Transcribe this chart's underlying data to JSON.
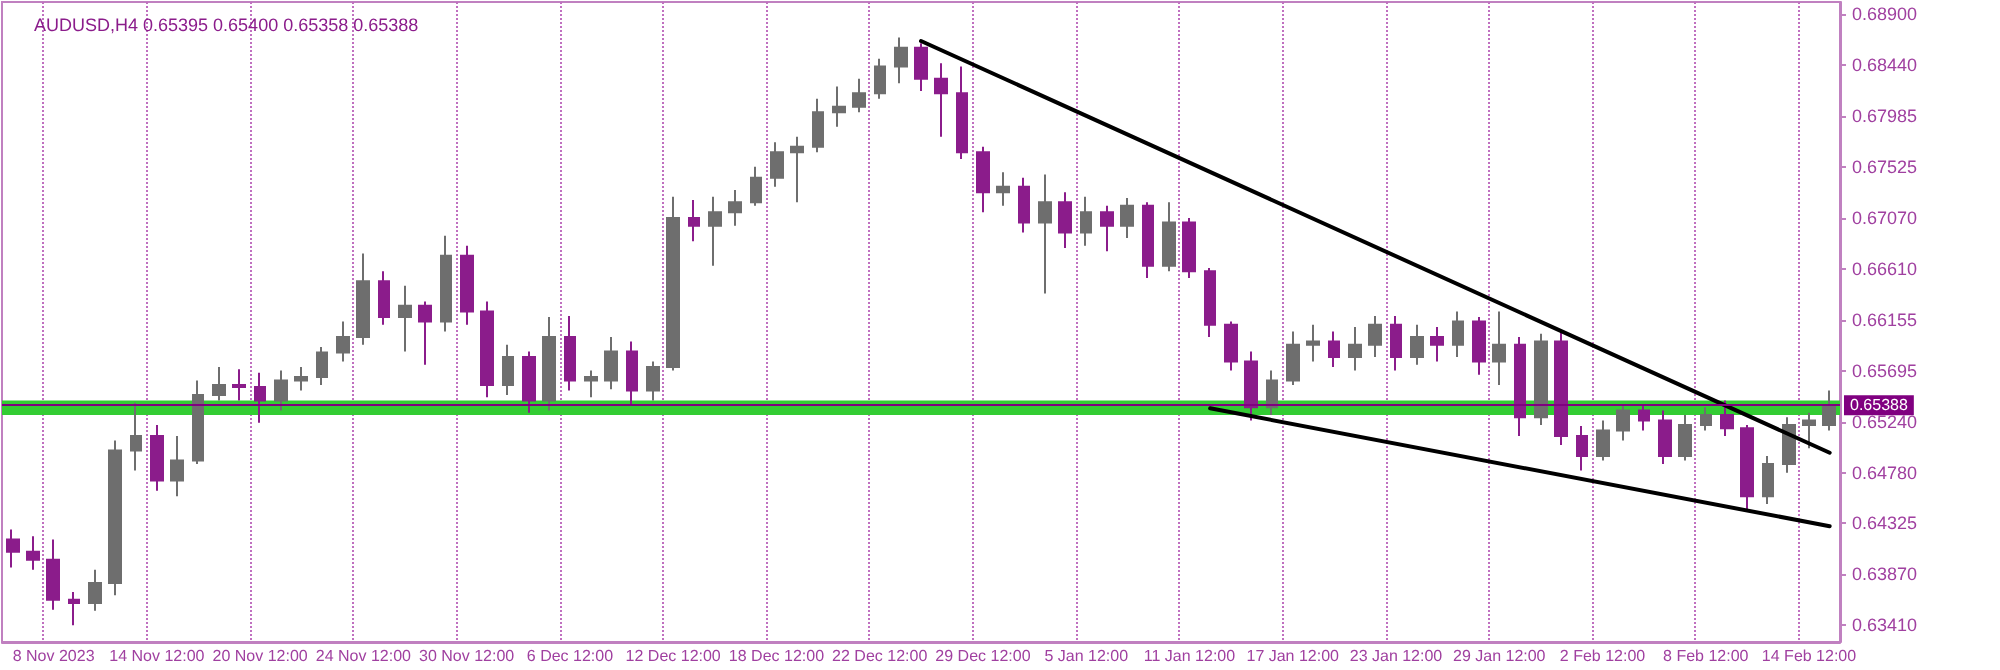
{
  "chart_data": {
    "type": "candlestick",
    "title": "AUDUSD,H4 0.65395 0.65400 0.65358 0.65388",
    "categories": [
      null,
      null,
      "8 Nov 2023",
      null,
      null,
      null,
      null,
      "14 Nov 12:00",
      null,
      null,
      null,
      null,
      "20 Nov 12:00",
      null,
      null,
      null,
      null,
      "24 Nov 12:00",
      null,
      null,
      null,
      null,
      "30 Nov 12:00",
      null,
      null,
      null,
      null,
      "6 Dec 12:00",
      null,
      null,
      null,
      null,
      "12 Dec 12:00",
      null,
      null,
      null,
      null,
      "18 Dec 12:00",
      null,
      null,
      null,
      null,
      "22 Dec 12:00",
      null,
      null,
      null,
      null,
      "29 Dec 12:00",
      null,
      null,
      null,
      null,
      "5 Jan 12:00",
      null,
      null,
      null,
      null,
      "11 Jan 12:00",
      null,
      null,
      null,
      null,
      "17 Jan 12:00",
      null,
      null,
      null,
      null,
      "23 Jan 12:00",
      null,
      null,
      null,
      null,
      "29 Jan 12:00",
      null,
      null,
      null,
      null,
      "2 Feb 12:00",
      null,
      null,
      null,
      null,
      "8 Feb 12:00",
      null,
      null,
      null,
      null,
      "14 Feb 12:00",
      null
    ],
    "series": [
      {
        "ohlc": [
          [
            0.6418,
            0.6427,
            0.6393,
            0.6407
          ],
          [
            0.6407,
            0.6421,
            0.6391,
            0.64
          ],
          [
            0.64,
            0.6418,
            0.6355,
            0.6364
          ],
          [
            0.6364,
            0.6371,
            0.6341,
            0.6361
          ],
          [
            0.6361,
            0.6391,
            0.6354,
            0.6379
          ],
          [
            0.6379,
            0.6507,
            0.6368,
            0.6498
          ],
          [
            0.6498,
            0.6541,
            0.648,
            0.6511
          ],
          [
            0.6511,
            0.6521,
            0.6462,
            0.6471
          ],
          [
            0.6471,
            0.6511,
            0.6457,
            0.6489
          ],
          [
            0.6489,
            0.6561,
            0.6486,
            0.6548
          ],
          [
            0.6548,
            0.6573,
            0.6543,
            0.6557
          ],
          [
            0.6557,
            0.6571,
            0.6543,
            0.6555
          ],
          [
            0.6555,
            0.6568,
            0.6523,
            0.6543
          ],
          [
            0.6543,
            0.657,
            0.6534,
            0.6561
          ],
          [
            0.6561,
            0.6573,
            0.6552,
            0.6564
          ],
          [
            0.6564,
            0.6591,
            0.6557,
            0.6586
          ],
          [
            0.6586,
            0.6614,
            0.6578,
            0.66
          ],
          [
            0.66,
            0.6675,
            0.6593,
            0.665
          ],
          [
            0.665,
            0.6659,
            0.6611,
            0.6618
          ],
          [
            0.6618,
            0.6646,
            0.6587,
            0.6628
          ],
          [
            0.6628,
            0.6632,
            0.6575,
            0.6614
          ],
          [
            0.6614,
            0.6691,
            0.6605,
            0.6673
          ],
          [
            0.6673,
            0.6682,
            0.6611,
            0.6623
          ],
          [
            0.6623,
            0.6632,
            0.6546,
            0.6557
          ],
          [
            0.6557,
            0.6593,
            0.6548,
            0.6582
          ],
          [
            0.6582,
            0.6587,
            0.6532,
            0.6543
          ],
          [
            0.6543,
            0.6618,
            0.6534,
            0.66
          ],
          [
            0.66,
            0.6619,
            0.6552,
            0.6561
          ],
          [
            0.6561,
            0.657,
            0.6546,
            0.6564
          ],
          [
            0.6561,
            0.66,
            0.6553,
            0.6587
          ],
          [
            0.6587,
            0.6596,
            0.6539,
            0.6552
          ],
          [
            0.6552,
            0.6578,
            0.6543,
            0.6573
          ],
          [
            0.6573,
            0.6726,
            0.657,
            0.6707
          ],
          [
            0.6707,
            0.6723,
            0.6686,
            0.67
          ],
          [
            0.67,
            0.6726,
            0.6664,
            0.6712
          ],
          [
            0.6712,
            0.6732,
            0.67,
            0.6721
          ],
          [
            0.6721,
            0.6753,
            0.6718,
            0.6743
          ],
          [
            0.6743,
            0.6775,
            0.6735,
            0.6766
          ],
          [
            0.6766,
            0.678,
            0.6721,
            0.6771
          ],
          [
            0.6771,
            0.6814,
            0.6766,
            0.6802
          ],
          [
            0.6802,
            0.6825,
            0.6789,
            0.6807
          ],
          [
            0.6807,
            0.6832,
            0.6802,
            0.6819
          ],
          [
            0.6819,
            0.685,
            0.6814,
            0.6843
          ],
          [
            0.6843,
            0.6869,
            0.6828,
            0.686
          ],
          [
            0.686,
            0.6864,
            0.6821,
            0.6832
          ],
          [
            0.6832,
            0.6846,
            0.678,
            0.6819
          ],
          [
            0.6819,
            0.6843,
            0.676,
            0.6766
          ],
          [
            0.6766,
            0.6771,
            0.6712,
            0.673
          ],
          [
            0.673,
            0.6748,
            0.6718,
            0.6735
          ],
          [
            0.6735,
            0.6743,
            0.6694,
            0.6703
          ],
          [
            0.6703,
            0.6746,
            0.6639,
            0.6721
          ],
          [
            0.6721,
            0.673,
            0.668,
            0.6694
          ],
          [
            0.6694,
            0.6726,
            0.6682,
            0.6712
          ],
          [
            0.6712,
            0.6718,
            0.6677,
            0.67
          ],
          [
            0.67,
            0.6725,
            0.6689,
            0.6718
          ],
          [
            0.6718,
            0.6721,
            0.6653,
            0.6664
          ],
          [
            0.6664,
            0.6721,
            0.6659,
            0.6703
          ],
          [
            0.6703,
            0.6707,
            0.6653,
            0.6659
          ],
          [
            0.6659,
            0.6662,
            0.66,
            0.6611
          ],
          [
            0.6611,
            0.6614,
            0.657,
            0.6578
          ],
          [
            0.6578,
            0.6587,
            0.6525,
            0.6537
          ],
          [
            0.6537,
            0.657,
            0.653,
            0.6561
          ],
          [
            0.6561,
            0.6605,
            0.6557,
            0.6593
          ],
          [
            0.6593,
            0.6611,
            0.6578,
            0.6596
          ],
          [
            0.6596,
            0.6605,
            0.6573,
            0.6582
          ],
          [
            0.6582,
            0.6609,
            0.657,
            0.6593
          ],
          [
            0.6593,
            0.6619,
            0.6582,
            0.6611
          ],
          [
            0.6611,
            0.6619,
            0.657,
            0.6582
          ],
          [
            0.6582,
            0.6611,
            0.6575,
            0.66
          ],
          [
            0.66,
            0.6609,
            0.6578,
            0.6593
          ],
          [
            0.6593,
            0.6623,
            0.6582,
            0.6614
          ],
          [
            0.6614,
            0.6618,
            0.6566,
            0.6578
          ],
          [
            0.6578,
            0.6623,
            0.6557,
            0.6593
          ],
          [
            0.6593,
            0.66,
            0.6511,
            0.6528
          ],
          [
            0.6528,
            0.6603,
            0.6521,
            0.6596
          ],
          [
            0.6596,
            0.6605,
            0.6503,
            0.6511
          ],
          [
            0.6511,
            0.652,
            0.648,
            0.6493
          ],
          [
            0.6493,
            0.6525,
            0.6489,
            0.6516
          ],
          [
            0.6516,
            0.6539,
            0.6507,
            0.6534
          ],
          [
            0.6534,
            0.6539,
            0.6516,
            0.6525
          ],
          [
            0.6525,
            0.6534,
            0.6486,
            0.6493
          ],
          [
            0.6493,
            0.653,
            0.6489,
            0.6521
          ],
          [
            0.6521,
            0.6537,
            0.6516,
            0.653
          ],
          [
            0.653,
            0.6543,
            0.6511,
            0.6518
          ],
          [
            0.6518,
            0.6521,
            0.6443,
            0.6457
          ],
          [
            0.6457,
            0.6493,
            0.645,
            0.6486
          ],
          [
            0.6486,
            0.6528,
            0.6478,
            0.6521
          ],
          [
            0.6521,
            0.6532,
            0.65,
            0.6525
          ],
          [
            0.6521,
            0.6552,
            0.6516,
            0.6539
          ]
        ],
        "colors": [
          "#8b1c8b",
          "#8b1c8b",
          "#8b1c8b",
          "#8b1c8b",
          "#6e6e6e",
          "#6e6e6e",
          "#6e6e6e",
          "#8b1c8b",
          "#6e6e6e",
          "#6e6e6e",
          "#6e6e6e",
          "#8b1c8b",
          "#8b1c8b",
          "#6e6e6e",
          "#6e6e6e",
          "#6e6e6e",
          "#6e6e6e",
          "#6e6e6e",
          "#8b1c8b",
          "#6e6e6e",
          "#8b1c8b",
          "#6e6e6e",
          "#8b1c8b",
          "#8b1c8b",
          "#6e6e6e",
          "#8b1c8b",
          "#6e6e6e",
          "#8b1c8b",
          "#6e6e6e",
          "#6e6e6e",
          "#8b1c8b",
          "#6e6e6e",
          "#6e6e6e",
          "#8b1c8b",
          "#6e6e6e",
          "#6e6e6e",
          "#6e6e6e",
          "#6e6e6e",
          "#6e6e6e",
          "#6e6e6e",
          "#6e6e6e",
          "#6e6e6e",
          "#6e6e6e",
          "#6e6e6e",
          "#8b1c8b",
          "#8b1c8b",
          "#8b1c8b",
          "#8b1c8b",
          "#6e6e6e",
          "#8b1c8b",
          "#6e6e6e",
          "#8b1c8b",
          "#6e6e6e",
          "#8b1c8b",
          "#6e6e6e",
          "#8b1c8b",
          "#6e6e6e",
          "#8b1c8b",
          "#8b1c8b",
          "#8b1c8b",
          "#8b1c8b",
          "#6e6e6e",
          "#6e6e6e",
          "#6e6e6e",
          "#8b1c8b",
          "#6e6e6e",
          "#6e6e6e",
          "#8b1c8b",
          "#6e6e6e",
          "#8b1c8b",
          "#6e6e6e",
          "#8b1c8b",
          "#6e6e6e",
          "#8b1c8b",
          "#6e6e6e",
          "#8b1c8b",
          "#8b1c8b",
          "#6e6e6e",
          "#6e6e6e",
          "#8b1c8b",
          "#8b1c8b",
          "#6e6e6e",
          "#6e6e6e",
          "#8b1c8b",
          "#8b1c8b",
          "#6e6e6e",
          "#6e6e6e",
          "#6e6e6e",
          "#6e6e6e"
        ]
      },
      {
        "type": "line",
        "color": "#000000",
        "values": [
          null,
          null,
          null,
          null,
          null,
          null,
          null,
          null,
          null,
          null,
          null,
          null,
          null,
          null,
          null,
          null,
          null,
          null,
          null,
          null,
          null,
          null,
          null,
          null,
          null,
          null,
          null,
          null,
          null,
          null,
          null,
          null,
          null,
          null,
          null,
          null,
          null,
          null,
          null,
          null,
          null,
          null,
          null,
          null,
          0.6866,
          null,
          null,
          null,
          null,
          null,
          null,
          null,
          null,
          null,
          null,
          null,
          null,
          null,
          null,
          null,
          null,
          null,
          null,
          null,
          null,
          null,
          null,
          null,
          null,
          null,
          null,
          null,
          null,
          null,
          null,
          null,
          null,
          null,
          null,
          null,
          null,
          null,
          null,
          null,
          null,
          null,
          null,
          null,
          0.6496
        ]
      },
      {
        "type": "line",
        "color": "#000000",
        "values": [
          null,
          null,
          null,
          null,
          null,
          null,
          null,
          null,
          null,
          null,
          null,
          null,
          null,
          null,
          null,
          null,
          null,
          null,
          null,
          null,
          null,
          null,
          null,
          null,
          null,
          null,
          null,
          null,
          null,
          null,
          null,
          null,
          null,
          null,
          null,
          null,
          null,
          null,
          null,
          null,
          null,
          null,
          null,
          null,
          null,
          null,
          null,
          null,
          null,
          null,
          null,
          null,
          null,
          null,
          null,
          null,
          null,
          null,
          0.6536,
          null,
          null,
          null,
          null,
          null,
          null,
          null,
          null,
          null,
          null,
          null,
          null,
          null,
          null,
          null,
          null,
          null,
          null,
          null,
          null,
          null,
          null,
          null,
          null,
          null,
          null,
          null,
          null,
          null,
          0.643
        ]
      }
    ],
    "ylim": [
      0.6326,
      0.6901
    ],
    "yticks": [
      {
        "value": 0.6341,
        "label": "0.63410"
      },
      {
        "value": 0.6387,
        "label": "0.63870"
      },
      {
        "value": 0.64325,
        "label": "0.64325"
      },
      {
        "value": 0.6478,
        "label": "0.64780"
      },
      {
        "value": 0.6524,
        "label": "0.65240"
      },
      {
        "value": 0.65695,
        "label": "0.65695"
      },
      {
        "value": 0.66155,
        "label": "0.66155"
      },
      {
        "value": 0.6661,
        "label": "0.66610"
      },
      {
        "value": 0.6707,
        "label": "0.67070"
      },
      {
        "value": 0.67525,
        "label": "0.67525"
      },
      {
        "value": 0.67985,
        "label": "0.67985"
      },
      {
        "value": 0.6844,
        "label": "0.68440"
      },
      {
        "value": 0.689,
        "label": "0.68900"
      }
    ],
    "bands": [
      {
        "axis": "y",
        "from": 0.653,
        "to": 0.6543,
        "color": "#33cc33"
      }
    ],
    "ref_lines": [
      {
        "axis": "y",
        "value": 0.65388,
        "label": "0.65388",
        "color": "#800080"
      }
    ],
    "grid": "x",
    "marker": "none",
    "line_style": "solid"
  }
}
